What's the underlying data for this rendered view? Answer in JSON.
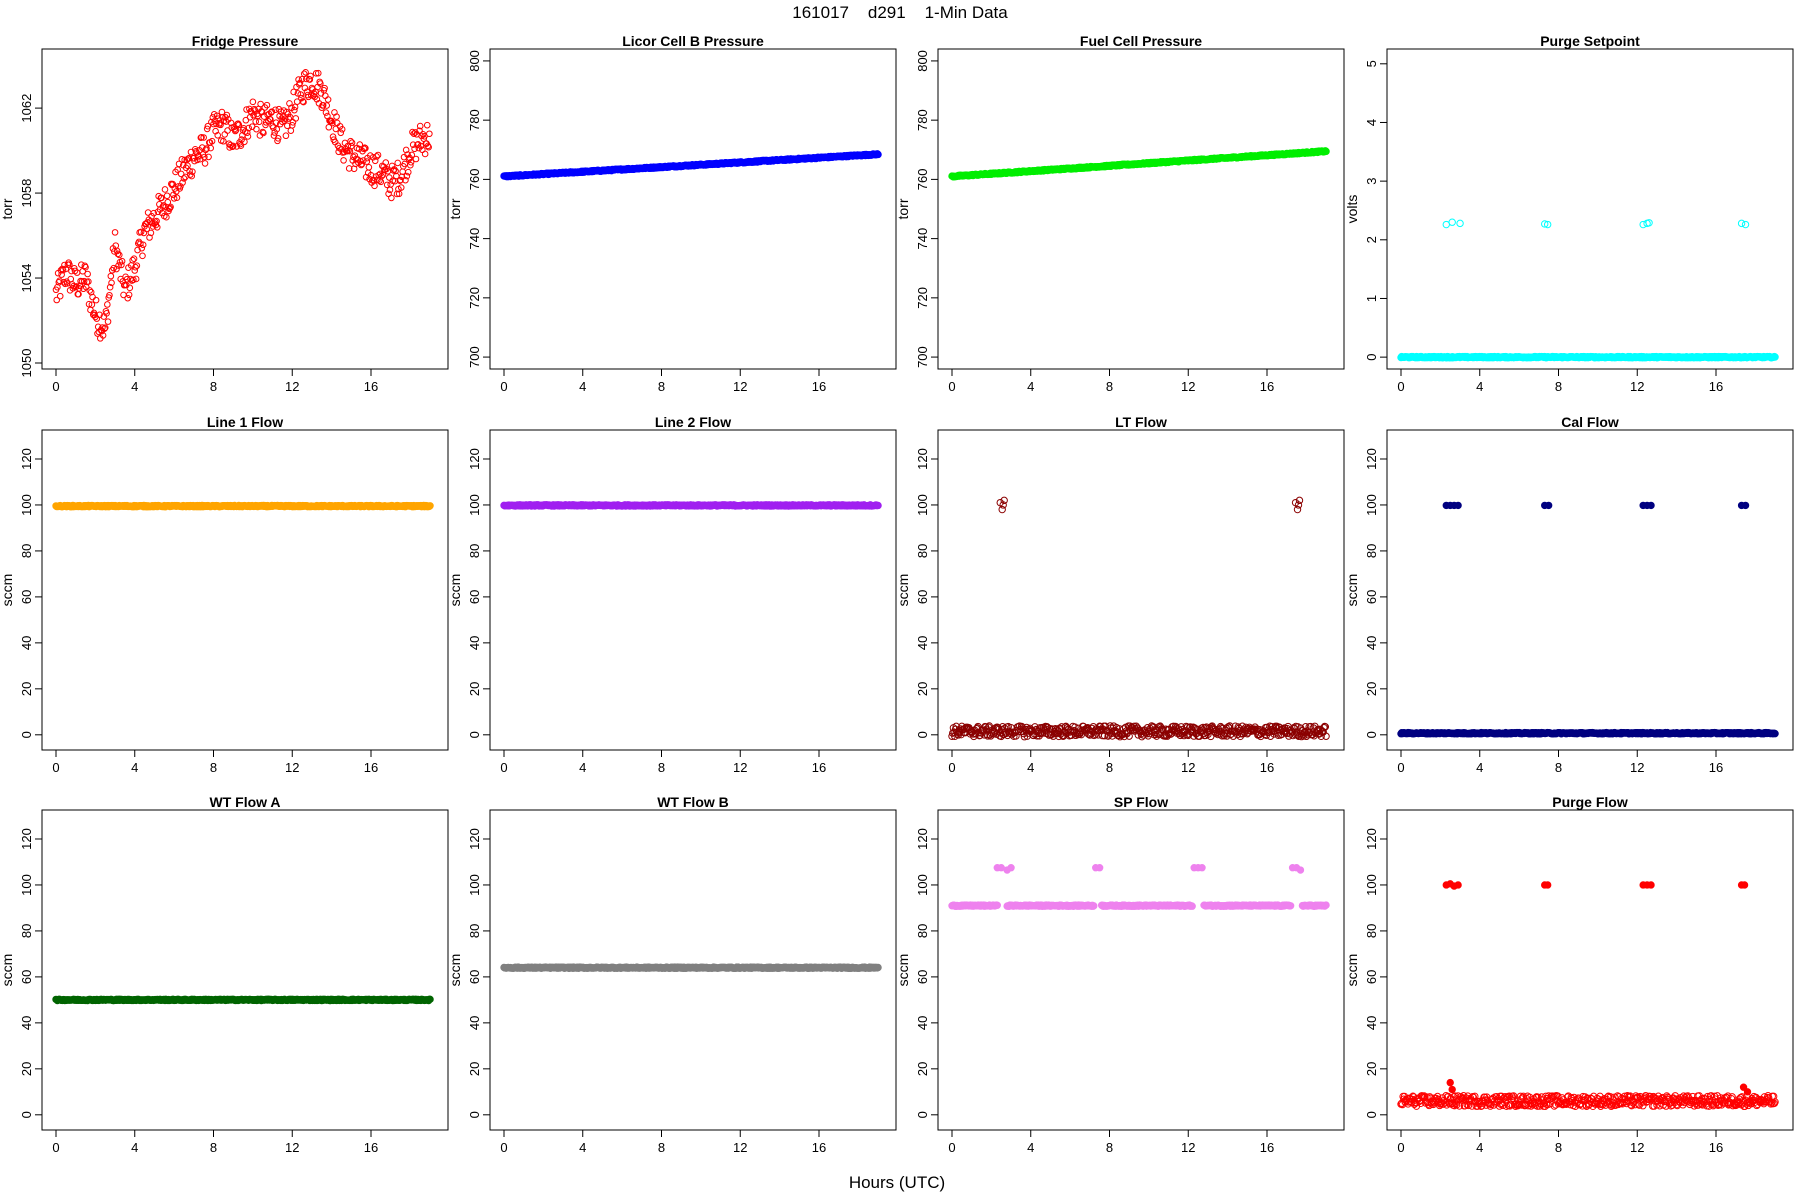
{
  "figure": {
    "title": "161017    d291    1-Min Data",
    "xlabel": "Hours (UTC)"
  },
  "chart_data": [
    {
      "type": "scatter",
      "title": "Fridge Pressure",
      "ylabel": "torr",
      "color": "#ff0000",
      "xlim": [
        0,
        19.2
      ],
      "ylim": [
        1050,
        1064.5
      ],
      "xticks": [
        0,
        4,
        8,
        12,
        16
      ],
      "yticks": [
        1050,
        1054,
        1058,
        1062
      ],
      "style": "open",
      "series": [
        {
          "x": [
            0,
            0.5,
            1,
            1.5,
            2,
            2.5,
            3,
            3.5,
            4,
            4.5,
            5,
            5.5,
            6,
            6.5,
            7,
            7.5,
            8,
            8.5,
            9,
            9.5,
            10,
            10.5,
            11,
            11.5,
            12,
            12.5,
            13,
            13.5,
            14,
            14.5,
            15,
            15.5,
            16,
            16.5,
            17,
            17.5,
            18,
            18.5,
            19
          ],
          "y": [
            1053.2,
            1054.3,
            1053.7,
            1054.0,
            1052.3,
            1051.6,
            1055.5,
            1053.4,
            1054.5,
            1056.2,
            1056.8,
            1057.5,
            1058.2,
            1059.0,
            1059.7,
            1060.0,
            1060.9,
            1061.2,
            1060.5,
            1061.0,
            1061.8,
            1061.3,
            1061.5,
            1061.0,
            1061.8,
            1063.0,
            1063.3,
            1062.8,
            1061.5,
            1060.3,
            1059.8,
            1059.5,
            1059.2,
            1059.0,
            1058.5,
            1058.8,
            1060.0,
            1060.5,
            1060.7
          ]
        }
      ]
    },
    {
      "type": "scatter",
      "title": "Licor Cell B Pressure",
      "ylabel": "torr",
      "color": "#0000ff",
      "xlim": [
        0,
        19.2
      ],
      "ylim": [
        698,
        802
      ],
      "xticks": [
        0,
        4,
        8,
        12,
        16
      ],
      "yticks": [
        700,
        720,
        740,
        760,
        780,
        800
      ],
      "style": "dense",
      "series": [
        {
          "x": [
            0,
            19
          ],
          "y": [
            761,
            768.5
          ]
        }
      ]
    },
    {
      "type": "scatter",
      "title": "Fuel Cell Pressure",
      "ylabel": "torr",
      "color": "#00ee00",
      "xlim": [
        0,
        19.2
      ],
      "ylim": [
        698,
        802
      ],
      "xticks": [
        0,
        4,
        8,
        12,
        16
      ],
      "yticks": [
        700,
        720,
        740,
        760,
        780,
        800
      ],
      "style": "dense",
      "series": [
        {
          "x": [
            0,
            19
          ],
          "y": [
            761,
            769.5
          ]
        }
      ]
    },
    {
      "type": "scatter",
      "title": "Purge Setpoint",
      "ylabel": "volts",
      "color": "#00ffff",
      "xlim": [
        0,
        19.2
      ],
      "ylim": [
        -0.1,
        5.15
      ],
      "xticks": [
        0,
        4,
        8,
        12,
        16
      ],
      "yticks": [
        0,
        1,
        2,
        3,
        4,
        5
      ],
      "style": "dense",
      "series": [
        {
          "x": [
            0,
            19
          ],
          "y": [
            0,
            0
          ]
        },
        {
          "x": [
            2.3,
            2.6,
            3.0
          ],
          "y": [
            2.26,
            2.3,
            2.28
          ],
          "style": "open"
        },
        {
          "x": [
            7.3,
            7.45
          ],
          "y": [
            2.27,
            2.26
          ],
          "style": "open"
        },
        {
          "x": [
            12.3,
            12.5,
            12.6
          ],
          "y": [
            2.26,
            2.28,
            2.29
          ],
          "style": "open"
        },
        {
          "x": [
            17.3,
            17.5
          ],
          "y": [
            2.28,
            2.26
          ],
          "style": "open"
        }
      ]
    },
    {
      "type": "scatter",
      "title": "Line 1 Flow",
      "ylabel": "sccm",
      "color": "#ffa500",
      "xlim": [
        0,
        19.2
      ],
      "ylim": [
        -4,
        130
      ],
      "xticks": [
        0,
        4,
        8,
        12,
        16
      ],
      "yticks": [
        0,
        20,
        40,
        60,
        80,
        100,
        120
      ],
      "style": "dense",
      "series": [
        {
          "x": [
            0,
            19
          ],
          "y": [
            99.5,
            99.5
          ]
        }
      ]
    },
    {
      "type": "scatter",
      "title": "Line 2 Flow",
      "ylabel": "sccm",
      "color": "#a020f0",
      "xlim": [
        0,
        19.2
      ],
      "ylim": [
        -4,
        130
      ],
      "xticks": [
        0,
        4,
        8,
        12,
        16
      ],
      "yticks": [
        0,
        20,
        40,
        60,
        80,
        100,
        120
      ],
      "style": "dense",
      "series": [
        {
          "x": [
            0,
            19
          ],
          "y": [
            99.8,
            99.8
          ]
        }
      ]
    },
    {
      "type": "scatter",
      "title": "LT Flow",
      "ylabel": "sccm",
      "color": "#8b0000",
      "xlim": [
        0,
        19.2
      ],
      "ylim": [
        -4,
        130
      ],
      "xticks": [
        0,
        4,
        8,
        12,
        16
      ],
      "yticks": [
        0,
        20,
        40,
        60,
        80,
        100,
        120
      ],
      "style": "noisy",
      "series": [
        {
          "x": [
            0,
            19
          ],
          "y": [
            1.5,
            1.5
          ]
        },
        {
          "x": [
            2.45,
            2.55,
            2.6,
            2.65
          ],
          "y": [
            101,
            98,
            100,
            102
          ],
          "style": "open"
        },
        {
          "x": [
            17.45,
            17.55,
            17.6,
            17.65
          ],
          "y": [
            101,
            98,
            100,
            102
          ],
          "style": "open"
        }
      ]
    },
    {
      "type": "scatter",
      "title": "Cal Flow",
      "ylabel": "sccm",
      "color": "#000080",
      "xlim": [
        0,
        19.2
      ],
      "ylim": [
        -4,
        130
      ],
      "xticks": [
        0,
        4,
        8,
        12,
        16
      ],
      "yticks": [
        0,
        20,
        40,
        60,
        80,
        100,
        120
      ],
      "style": "dense",
      "series": [
        {
          "x": [
            0,
            19
          ],
          "y": [
            0.7,
            0.7
          ]
        },
        {
          "x": [
            2.3,
            2.5,
            2.7,
            2.9
          ],
          "y": [
            99.8,
            99.8,
            99.8,
            99.8
          ]
        },
        {
          "x": [
            7.3,
            7.5
          ],
          "y": [
            99.8,
            99.8
          ]
        },
        {
          "x": [
            12.3,
            12.5,
            12.7
          ],
          "y": [
            99.8,
            99.8,
            99.8
          ]
        },
        {
          "x": [
            17.3,
            17.5
          ],
          "y": [
            99.8,
            99.8
          ]
        }
      ]
    },
    {
      "type": "scatter",
      "title": "WT Flow A",
      "ylabel": "sccm",
      "color": "#006400",
      "xlim": [
        0,
        19.2
      ],
      "ylim": [
        -4,
        130
      ],
      "xticks": [
        0,
        4,
        8,
        12,
        16
      ],
      "yticks": [
        0,
        20,
        40,
        60,
        80,
        100,
        120
      ],
      "style": "dense",
      "series": [
        {
          "x": [
            0,
            19
          ],
          "y": [
            50,
            50
          ]
        }
      ]
    },
    {
      "type": "scatter",
      "title": "WT Flow B",
      "ylabel": "sccm",
      "color": "#808080",
      "xlim": [
        0,
        19.2
      ],
      "ylim": [
        -4,
        130
      ],
      "xticks": [
        0,
        4,
        8,
        12,
        16
      ],
      "yticks": [
        0,
        20,
        40,
        60,
        80,
        100,
        120
      ],
      "style": "dense",
      "series": [
        {
          "x": [
            0,
            19
          ],
          "y": [
            64,
            64
          ]
        }
      ]
    },
    {
      "type": "scatter",
      "title": "SP Flow",
      "ylabel": "sccm",
      "color": "#ee82ee",
      "xlim": [
        0,
        19.2
      ],
      "ylim": [
        -4,
        130
      ],
      "xticks": [
        0,
        4,
        8,
        12,
        16
      ],
      "yticks": [
        0,
        20,
        40,
        60,
        80,
        100,
        120
      ],
      "style": "dense",
      "series": [
        {
          "x": [
            0,
            2.3
          ],
          "y": [
            91,
            91
          ]
        },
        {
          "x": [
            2.8,
            7.2
          ],
          "y": [
            91,
            91
          ]
        },
        {
          "x": [
            7.6,
            12.2
          ],
          "y": [
            91,
            91
          ]
        },
        {
          "x": [
            12.8,
            17.2
          ],
          "y": [
            91,
            91
          ]
        },
        {
          "x": [
            17.8,
            19
          ],
          "y": [
            91,
            91
          ]
        },
        {
          "x": [
            2.3,
            2.5,
            2.8,
            3.0
          ],
          "y": [
            107.5,
            107.5,
            106.5,
            107.5
          ]
        },
        {
          "x": [
            7.3,
            7.5
          ],
          "y": [
            107.5,
            107.5
          ]
        },
        {
          "x": [
            12.3,
            12.5,
            12.7
          ],
          "y": [
            107.5,
            107.5,
            107.5
          ]
        },
        {
          "x": [
            17.3,
            17.5,
            17.7
          ],
          "y": [
            107.5,
            107.5,
            106.5
          ]
        }
      ]
    },
    {
      "type": "scatter",
      "title": "Purge Flow",
      "ylabel": "sccm",
      "color": "#ff0000",
      "xlim": [
        0,
        19.2
      ],
      "ylim": [
        -4,
        130
      ],
      "xticks": [
        0,
        4,
        8,
        12,
        16
      ],
      "yticks": [
        0,
        20,
        40,
        60,
        80,
        100,
        120
      ],
      "style": "noisy",
      "series": [
        {
          "x": [
            0,
            19
          ],
          "y": [
            6,
            6
          ]
        },
        {
          "x": [
            2.3,
            2.5,
            2.7,
            2.9
          ],
          "y": [
            100,
            100.5,
            99.5,
            100
          ]
        },
        {
          "x": [
            7.3,
            7.45
          ],
          "y": [
            100,
            100
          ]
        },
        {
          "x": [
            12.3,
            12.5,
            12.7
          ],
          "y": [
            100,
            100,
            100
          ]
        },
        {
          "x": [
            17.3,
            17.45
          ],
          "y": [
            100,
            100
          ]
        },
        {
          "x": [
            2.5,
            2.6,
            17.4,
            17.6
          ],
          "y": [
            14,
            11,
            12,
            10
          ]
        }
      ]
    }
  ]
}
